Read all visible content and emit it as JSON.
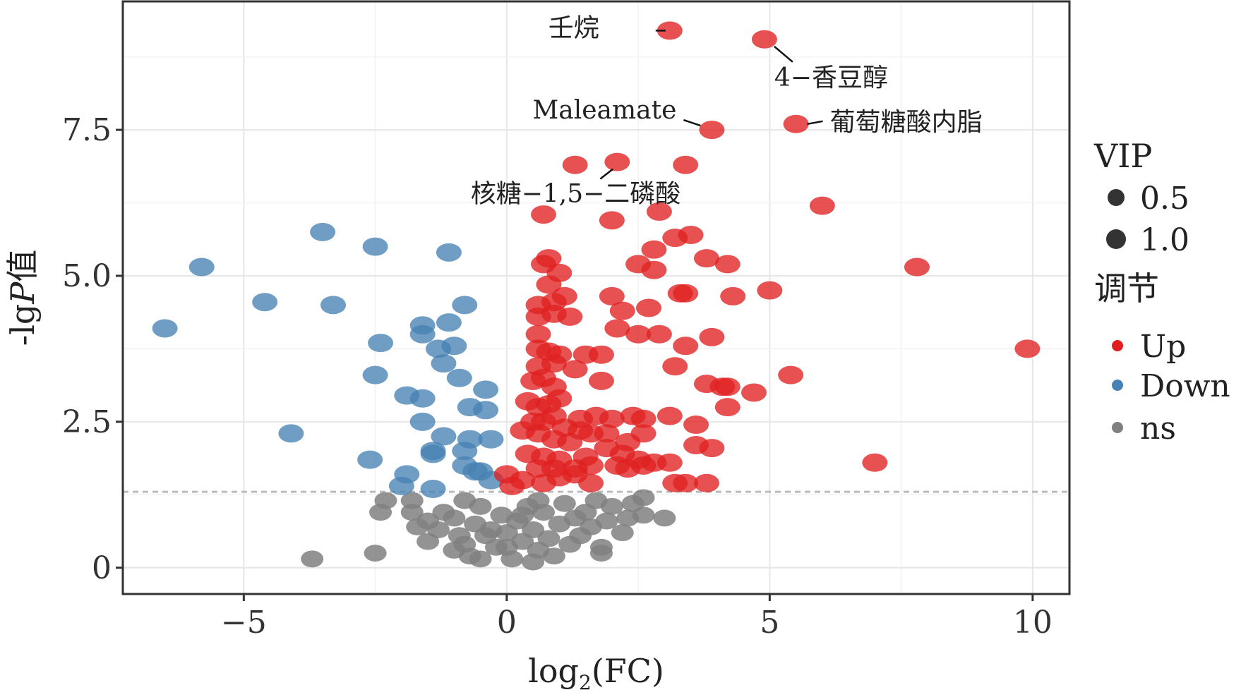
{
  "chart_data": {
    "type": "scatter",
    "title": "",
    "xlabel": "log2(FC)",
    "xlabel_parts": {
      "base": "log",
      "sub": "2",
      "rest": "(FC)"
    },
    "ylabel": "-lgP值",
    "ylabel_parts": {
      "pre": "-lg",
      "italic": "P",
      "post": "值"
    },
    "xlim": [
      -7.3,
      10.7
    ],
    "ylim": [
      -0.45,
      9.7
    ],
    "x_ticks": [
      -5,
      0,
      5,
      10
    ],
    "x_tick_labels": [
      "−5",
      "0",
      "5",
      "10"
    ],
    "y_ticks": [
      0,
      2.5,
      5.0,
      7.5
    ],
    "y_tick_labels": [
      "0",
      "2.5",
      "5.0",
      "7.5"
    ],
    "grid": true,
    "threshold": {
      "y": 1.3,
      "style": "dashed",
      "color": "#bbbbbb"
    },
    "colors": {
      "Up": "#e02020",
      "Down": "#4682b4",
      "ns": "#808080"
    },
    "legend": {
      "position": "right",
      "size_title": "VIP",
      "size_entries": [
        "0.5",
        "1.0"
      ],
      "color_title": "调节",
      "color_entries": [
        "Up",
        "Down",
        "ns"
      ]
    },
    "annotations": [
      {
        "label": "壬烷",
        "x": 3.1,
        "y": 9.2
      },
      {
        "label": "4−香豆醇",
        "x": 4.9,
        "y": 9.05
      },
      {
        "label": "Maleamate",
        "x": 3.9,
        "y": 7.5
      },
      {
        "label": "葡萄糖酸内脂",
        "x": 5.5,
        "y": 7.6
      },
      {
        "label": "核糖−1,5−二磷酸",
        "x": 2.1,
        "y": 6.95
      }
    ],
    "series": [
      {
        "name": "Up",
        "points": [
          [
            3.1,
            9.2
          ],
          [
            4.9,
            9.05
          ],
          [
            3.9,
            7.5
          ],
          [
            5.5,
            7.6
          ],
          [
            1.3,
            6.9
          ],
          [
            2.1,
            6.95
          ],
          [
            3.4,
            6.9
          ],
          [
            6.0,
            6.2
          ],
          [
            0.7,
            6.05
          ],
          [
            2.0,
            5.95
          ],
          [
            2.9,
            6.1
          ],
          [
            3.2,
            5.65
          ],
          [
            3.5,
            5.7
          ],
          [
            2.8,
            5.45
          ],
          [
            0.8,
            5.3
          ],
          [
            0.7,
            5.2
          ],
          [
            1.0,
            5.05
          ],
          [
            2.5,
            5.2
          ],
          [
            2.8,
            5.1
          ],
          [
            3.8,
            5.3
          ],
          [
            4.2,
            5.2
          ],
          [
            7.8,
            5.15
          ],
          [
            0.8,
            4.85
          ],
          [
            1.1,
            4.65
          ],
          [
            0.6,
            4.5
          ],
          [
            0.9,
            4.55
          ],
          [
            2.0,
            4.65
          ],
          [
            2.7,
            4.45
          ],
          [
            3.3,
            4.7
          ],
          [
            3.4,
            4.7
          ],
          [
            4.3,
            4.65
          ],
          [
            5.0,
            4.75
          ],
          [
            0.6,
            4.3
          ],
          [
            0.9,
            4.35
          ],
          [
            1.2,
            4.3
          ],
          [
            2.2,
            4.4
          ],
          [
            0.6,
            4.0
          ],
          [
            2.1,
            4.1
          ],
          [
            2.5,
            4.0
          ],
          [
            2.9,
            4.0
          ],
          [
            3.9,
            3.95
          ],
          [
            0.6,
            3.75
          ],
          [
            0.8,
            3.7
          ],
          [
            1.0,
            3.65
          ],
          [
            1.5,
            3.65
          ],
          [
            1.8,
            3.65
          ],
          [
            3.4,
            3.8
          ],
          [
            9.9,
            3.75
          ],
          [
            0.6,
            3.45
          ],
          [
            0.9,
            3.5
          ],
          [
            1.3,
            3.4
          ],
          [
            3.2,
            3.45
          ],
          [
            5.4,
            3.3
          ],
          [
            0.5,
            3.2
          ],
          [
            0.7,
            3.25
          ],
          [
            0.9,
            3.1
          ],
          [
            1.8,
            3.2
          ],
          [
            3.8,
            3.15
          ],
          [
            4.1,
            3.1
          ],
          [
            4.2,
            3.1
          ],
          [
            4.7,
            3.0
          ],
          [
            0.4,
            2.85
          ],
          [
            0.6,
            2.75
          ],
          [
            0.8,
            2.8
          ],
          [
            1.0,
            2.9
          ],
          [
            0.5,
            2.5
          ],
          [
            0.7,
            2.5
          ],
          [
            0.9,
            2.6
          ],
          [
            1.1,
            2.4
          ],
          [
            1.4,
            2.55
          ],
          [
            1.7,
            2.6
          ],
          [
            2.0,
            2.55
          ],
          [
            2.4,
            2.6
          ],
          [
            2.6,
            2.55
          ],
          [
            3.1,
            2.6
          ],
          [
            4.2,
            2.75
          ],
          [
            0.3,
            2.35
          ],
          [
            0.6,
            2.3
          ],
          [
            0.9,
            2.2
          ],
          [
            1.2,
            2.15
          ],
          [
            1.4,
            2.35
          ],
          [
            1.6,
            2.3
          ],
          [
            1.9,
            2.3
          ],
          [
            2.3,
            2.15
          ],
          [
            2.6,
            2.3
          ],
          [
            3.6,
            2.45
          ],
          [
            0.4,
            1.95
          ],
          [
            0.7,
            1.9
          ],
          [
            1.0,
            1.85
          ],
          [
            1.5,
            1.9
          ],
          [
            1.9,
            2.05
          ],
          [
            2.2,
            1.95
          ],
          [
            2.5,
            1.85
          ],
          [
            3.6,
            2.1
          ],
          [
            3.9,
            2.05
          ],
          [
            7.0,
            1.8
          ],
          [
            0.6,
            1.7
          ],
          [
            0.9,
            1.7
          ],
          [
            1.3,
            1.7
          ],
          [
            1.6,
            1.75
          ],
          [
            2.1,
            1.75
          ],
          [
            2.6,
            1.75
          ],
          [
            2.8,
            1.8
          ],
          [
            3.1,
            1.8
          ],
          [
            0.0,
            1.6
          ],
          [
            0.3,
            1.5
          ],
          [
            0.7,
            1.45
          ],
          [
            1.0,
            1.55
          ],
          [
            1.3,
            1.6
          ],
          [
            1.6,
            1.45
          ],
          [
            2.3,
            1.7
          ],
          [
            3.2,
            1.45
          ],
          [
            3.4,
            1.45
          ],
          [
            3.8,
            1.45
          ],
          [
            0.1,
            1.4
          ]
        ]
      },
      {
        "name": "Down",
        "points": [
          [
            -3.5,
            5.75
          ],
          [
            -2.5,
            5.5
          ],
          [
            -1.1,
            5.4
          ],
          [
            -5.8,
            5.15
          ],
          [
            -4.6,
            4.55
          ],
          [
            -3.3,
            4.5
          ],
          [
            -0.8,
            4.5
          ],
          [
            -6.5,
            4.1
          ],
          [
            -1.6,
            4.15
          ],
          [
            -1.1,
            4.2
          ],
          [
            -1.6,
            4.0
          ],
          [
            -2.4,
            3.85
          ],
          [
            -1.0,
            3.8
          ],
          [
            -1.3,
            3.75
          ],
          [
            -1.2,
            3.5
          ],
          [
            -2.5,
            3.3
          ],
          [
            -0.9,
            3.25
          ],
          [
            -1.9,
            2.95
          ],
          [
            -1.6,
            2.9
          ],
          [
            -0.4,
            3.05
          ],
          [
            -1.6,
            2.5
          ],
          [
            -0.7,
            2.75
          ],
          [
            -0.4,
            2.7
          ],
          [
            -4.1,
            2.3
          ],
          [
            -1.2,
            2.25
          ],
          [
            -0.7,
            2.2
          ],
          [
            -0.3,
            2.2
          ],
          [
            -0.8,
            2.0
          ],
          [
            -1.4,
            2.0
          ],
          [
            -1.4,
            1.95
          ],
          [
            -2.6,
            1.85
          ],
          [
            -0.8,
            1.75
          ],
          [
            -0.5,
            1.65
          ],
          [
            -0.6,
            1.65
          ],
          [
            -1.9,
            1.6
          ],
          [
            -0.3,
            1.5
          ],
          [
            -2.0,
            1.4
          ],
          [
            -1.4,
            1.35
          ]
        ]
      },
      {
        "name": "ns",
        "points": [
          [
            -3.7,
            0.15
          ],
          [
            -2.5,
            0.25
          ],
          [
            -2.3,
            1.15
          ],
          [
            -2.4,
            0.95
          ],
          [
            -1.8,
            1.15
          ],
          [
            -1.8,
            0.95
          ],
          [
            -1.7,
            0.7
          ],
          [
            -1.5,
            0.8
          ],
          [
            -1.3,
            0.65
          ],
          [
            -1.2,
            0.95
          ],
          [
            -1.0,
            0.85
          ],
          [
            -0.9,
            0.55
          ],
          [
            -0.8,
            0.4
          ],
          [
            -0.7,
            0.2
          ],
          [
            -0.6,
            0.75
          ],
          [
            -0.5,
            1.05
          ],
          [
            -0.4,
            0.55
          ],
          [
            -0.2,
            0.35
          ],
          [
            -0.1,
            0.9
          ],
          [
            0.0,
            0.6
          ],
          [
            0.1,
            0.15
          ],
          [
            0.2,
            0.8
          ],
          [
            0.3,
            0.45
          ],
          [
            0.4,
            1.05
          ],
          [
            0.5,
            0.65
          ],
          [
            0.6,
            0.3
          ],
          [
            0.7,
            0.95
          ],
          [
            0.8,
            0.5
          ],
          [
            0.9,
            0.2
          ],
          [
            1.0,
            0.75
          ],
          [
            1.1,
            1.1
          ],
          [
            1.2,
            0.4
          ],
          [
            1.3,
            0.85
          ],
          [
            1.4,
            0.55
          ],
          [
            1.5,
            0.95
          ],
          [
            1.6,
            0.7
          ],
          [
            1.8,
            0.35
          ],
          [
            1.9,
            0.8
          ],
          [
            2.0,
            1.05
          ],
          [
            2.2,
            0.6
          ],
          [
            2.4,
            1.1
          ],
          [
            2.6,
            0.9
          ],
          [
            2.6,
            1.2
          ],
          [
            3.0,
            0.85
          ],
          [
            1.8,
            0.25
          ],
          [
            -1.5,
            0.45
          ],
          [
            -1.0,
            0.3
          ],
          [
            -0.5,
            0.15
          ],
          [
            0.5,
            0.1
          ],
          [
            0.3,
            0.9
          ],
          [
            -0.3,
            0.65
          ],
          [
            0.6,
            1.15
          ],
          [
            1.7,
            1.15
          ],
          [
            2.3,
            0.85
          ],
          [
            -0.8,
            1.15
          ],
          [
            0.0,
            0.35
          ]
        ]
      }
    ]
  }
}
